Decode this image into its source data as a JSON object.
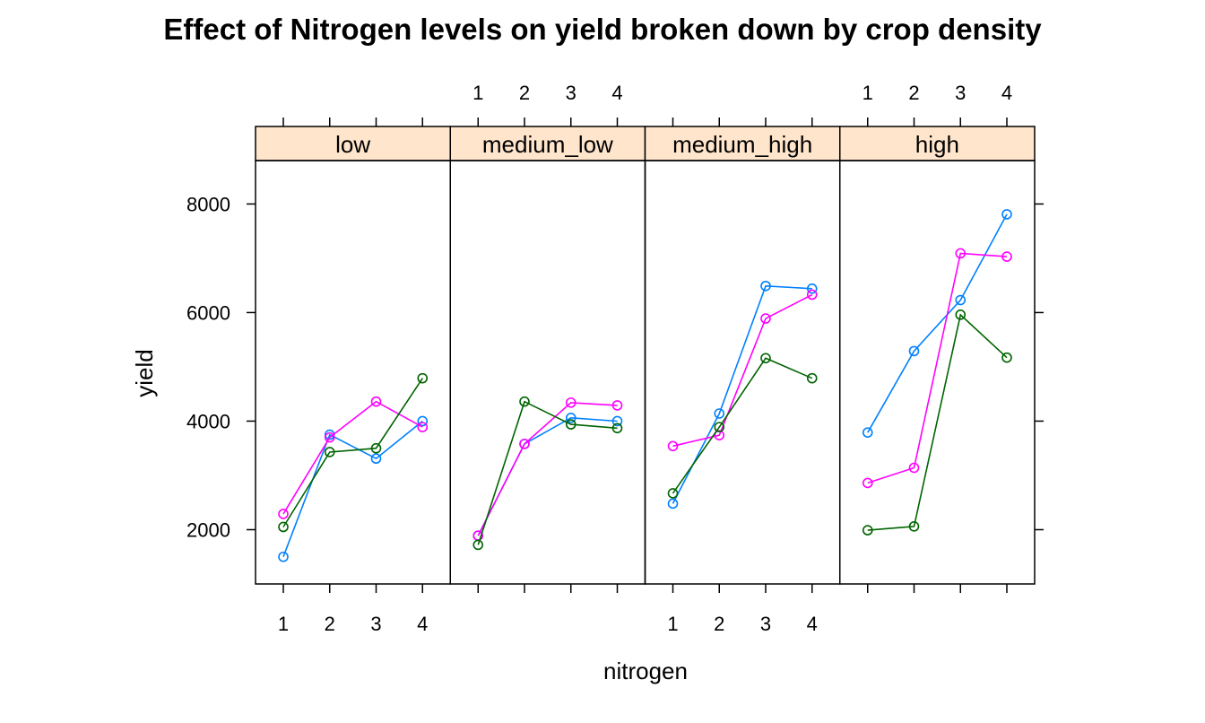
{
  "chart_data": {
    "type": "line",
    "title": "Effect of Nitrogen levels on yield broken down by crop density",
    "xlabel": "nitrogen",
    "ylabel": "yield",
    "x": [
      1,
      2,
      3,
      4
    ],
    "x_tick_labels": [
      "1",
      "2",
      "3",
      "4"
    ],
    "ylim": [
      1000,
      8800
    ],
    "y_ticks": [
      2000,
      4000,
      6000,
      8000
    ],
    "y_tick_labels": [
      "2000",
      "4000",
      "6000",
      "8000"
    ],
    "strip_color": "#ffe5cc",
    "grid": false,
    "legend": "none",
    "panels": [
      {
        "name": "low",
        "series": [
          {
            "color": "#0080ff",
            "values": [
              1500,
              3750,
              3310,
              4000
            ]
          },
          {
            "color": "#ff00ff",
            "values": [
              2290,
              3700,
              4360,
              3890
            ]
          },
          {
            "color": "#006400",
            "values": [
              2050,
              3430,
              3500,
              4790
            ]
          }
        ]
      },
      {
        "name": "medium_low",
        "series": [
          {
            "color": "#0080ff",
            "values": [
              1890,
              3580,
              4060,
              4000
            ]
          },
          {
            "color": "#ff00ff",
            "values": [
              1890,
              3580,
              4340,
              4290
            ]
          },
          {
            "color": "#006400",
            "values": [
              1720,
              4360,
              3940,
              3870
            ]
          }
        ]
      },
      {
        "name": "medium_high",
        "series": [
          {
            "color": "#0080ff",
            "values": [
              2480,
              4140,
              6490,
              6440
            ]
          },
          {
            "color": "#ff00ff",
            "values": [
              3540,
              3740,
              5890,
              6330
            ]
          },
          {
            "color": "#006400",
            "values": [
              2670,
              3890,
              5160,
              4790
            ]
          }
        ]
      },
      {
        "name": "high",
        "series": [
          {
            "color": "#0080ff",
            "values": [
              3790,
              5290,
              6230,
              7810
            ]
          },
          {
            "color": "#ff00ff",
            "values": [
              2860,
              3140,
              7090,
              7030
            ]
          },
          {
            "color": "#006400",
            "values": [
              1990,
              2060,
              5960,
              5170
            ]
          }
        ]
      }
    ]
  }
}
